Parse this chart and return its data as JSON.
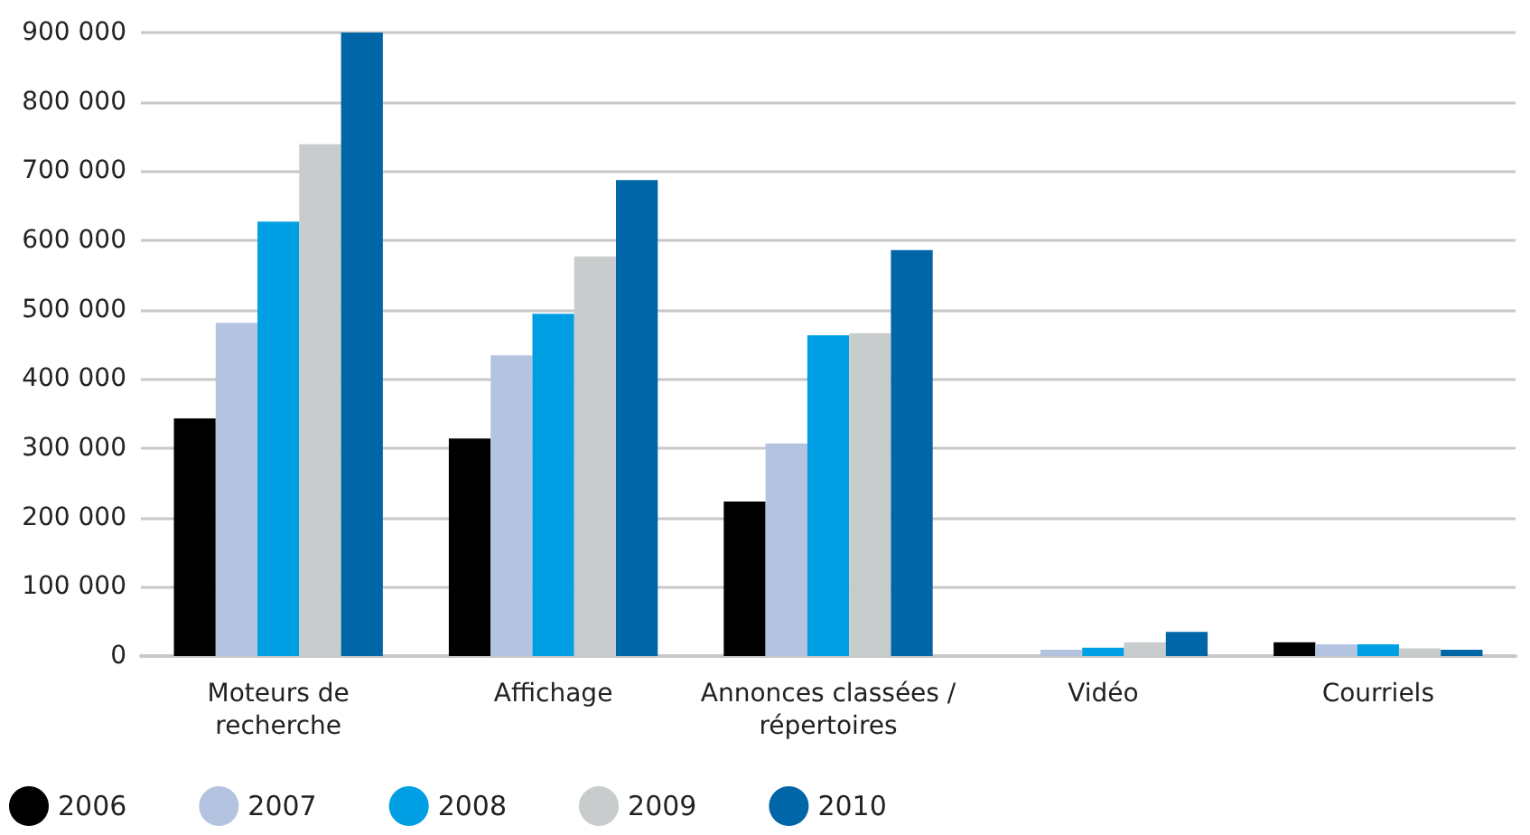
{
  "chart_data": {
    "type": "bar",
    "categories": [
      "Moteurs de\nrecherche",
      "Affichage",
      "Annonces classées /\nrépertoires",
      "Vidéo",
      "Courriels"
    ],
    "series": [
      {
        "name": "2006",
        "color": "#000000",
        "values": [
          343000,
          314000,
          223000,
          0,
          20000
        ]
      },
      {
        "name": "2007",
        "color": "#b4c3e0",
        "values": [
          481000,
          434000,
          307000,
          9000,
          17000
        ]
      },
      {
        "name": "2008",
        "color": "#009fe3",
        "values": [
          627000,
          494000,
          463000,
          12000,
          17000
        ]
      },
      {
        "name": "2009",
        "color": "#c8cccc",
        "values": [
          739000,
          577000,
          466000,
          20000,
          11000
        ]
      },
      {
        "name": "2010",
        "color": "#0066a8",
        "values": [
          900000,
          687000,
          586000,
          35000,
          9000
        ]
      }
    ],
    "ylim": [
      0,
      900000
    ],
    "yticks": [
      {
        "value": 0,
        "label": "0"
      },
      {
        "value": 100000,
        "label": "100 000"
      },
      {
        "value": 200000,
        "label": "200 000"
      },
      {
        "value": 300000,
        "label": "300 000"
      },
      {
        "value": 400000,
        "label": "400 000"
      },
      {
        "value": 500000,
        "label": "500 000"
      },
      {
        "value": 600000,
        "label": "600 000"
      },
      {
        "value": 700000,
        "label": "700 000"
      },
      {
        "value": 800000,
        "label": "800 000"
      },
      {
        "value": 900000,
        "label": "900 000"
      }
    ],
    "grid": "y",
    "legend": "bottom left"
  }
}
